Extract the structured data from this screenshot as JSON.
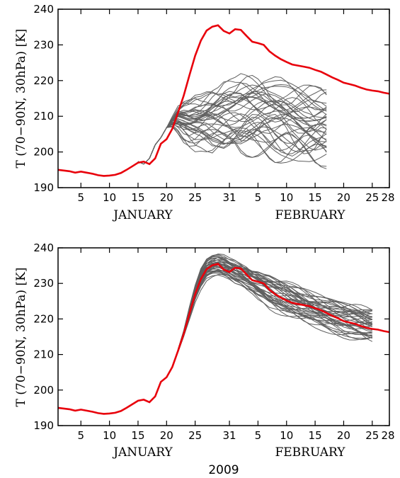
{
  "figure": {
    "year_label": "2009",
    "line_colors": {
      "ensemble": "#606060",
      "observed": "#e8000b"
    }
  },
  "chart_data": [
    {
      "type": "line",
      "title": "",
      "ylabel": "T (70−90N, 30hPa) [K]",
      "xlabel": "",
      "month_labels": [
        "JANUARY",
        "FEBRUARY"
      ],
      "ylim": [
        190,
        240
      ],
      "yticks": [
        190,
        200,
        210,
        220,
        230,
        240
      ],
      "xlim": [
        1,
        59
      ],
      "xticks": [
        {
          "day": 5,
          "label": "5"
        },
        {
          "day": 10,
          "label": "10"
        },
        {
          "day": 15,
          "label": "15"
        },
        {
          "day": 20,
          "label": "20"
        },
        {
          "day": 25,
          "label": "25"
        },
        {
          "day": 31,
          "label": "31"
        },
        {
          "day": 36,
          "label": "5"
        },
        {
          "day": 41,
          "label": "10"
        },
        {
          "day": 46,
          "label": "15"
        },
        {
          "day": 51,
          "label": "20"
        },
        {
          "day": 56,
          "label": "25"
        },
        {
          "day": 59,
          "label": "28"
        }
      ],
      "observed": {
        "x": [
          1,
          2,
          3,
          4,
          5,
          6,
          7,
          8,
          9,
          10,
          11,
          12,
          13,
          14,
          15,
          16,
          17,
          18,
          19,
          20,
          21,
          22,
          23,
          24,
          25,
          26,
          27,
          28,
          29,
          30,
          31,
          32,
          33,
          34,
          35,
          36,
          37,
          38,
          39,
          40,
          41,
          42,
          43,
          44,
          45,
          46,
          47,
          48,
          49,
          50,
          51,
          52,
          53,
          54,
          55,
          56,
          57,
          58,
          59
        ],
        "y": [
          195.0,
          194.8,
          194.6,
          194.2,
          194.5,
          194.2,
          193.9,
          193.5,
          193.3,
          193.4,
          193.6,
          194.1,
          195.0,
          196.0,
          197.0,
          197.3,
          196.6,
          198.2,
          202.3,
          203.6,
          206.5,
          211.0,
          215.8,
          221.5,
          227.0,
          231.2,
          234.0,
          235.1,
          235.5,
          233.9,
          233.2,
          234.4,
          234.2,
          232.5,
          230.9,
          230.5,
          230.0,
          228.2,
          227.0,
          226.0,
          225.2,
          224.5,
          224.2,
          223.9,
          223.6,
          223.0,
          222.5,
          221.7,
          220.9,
          220.2,
          219.4,
          219.0,
          218.6,
          218.0,
          217.5,
          217.2,
          217.0,
          216.6,
          216.3
        ]
      },
      "ensemble": {
        "start_day": 15,
        "end_day": 48,
        "members": 40,
        "shared_start": [
          197.3,
          196.6,
          198.2,
          202.0,
          204.0,
          206.8
        ],
        "spread_mean": [
          197.3,
          196.6,
          198.2,
          202.0,
          204.0,
          206.8,
          208.5,
          209.0,
          208.5,
          208.0,
          208.0,
          208.2,
          208.5,
          208.7,
          209.0,
          209.3,
          209.5,
          209.7,
          209.8,
          210.0,
          210.0,
          209.8,
          209.5,
          209.0,
          208.7,
          208.5,
          208.3,
          208.0,
          207.7,
          207.5,
          207.3,
          207.0,
          207.0,
          206.8
        ],
        "spread_range": [
          0,
          0,
          0,
          0,
          0,
          0,
          1.5,
          4,
          6,
          7,
          8,
          8,
          9,
          10,
          10,
          11,
          11,
          11,
          12,
          12,
          12,
          12,
          12,
          12,
          12,
          12,
          12,
          12,
          12,
          12,
          12,
          12,
          12,
          12
        ]
      }
    },
    {
      "type": "line",
      "title": "",
      "ylabel": "T (70−90N, 30hPa) [K]",
      "xlabel": "2009",
      "month_labels": [
        "JANUARY",
        "FEBRUARY"
      ],
      "ylim": [
        190,
        240
      ],
      "yticks": [
        190,
        200,
        210,
        220,
        230,
        240
      ],
      "xlim": [
        1,
        59
      ],
      "xticks": [
        {
          "day": 5,
          "label": "5"
        },
        {
          "day": 10,
          "label": "10"
        },
        {
          "day": 15,
          "label": "15"
        },
        {
          "day": 20,
          "label": "20"
        },
        {
          "day": 25,
          "label": "25"
        },
        {
          "day": 31,
          "label": "31"
        },
        {
          "day": 36,
          "label": "5"
        },
        {
          "day": 41,
          "label": "10"
        },
        {
          "day": 46,
          "label": "15"
        },
        {
          "day": 51,
          "label": "20"
        },
        {
          "day": 56,
          "label": "25"
        },
        {
          "day": 59,
          "label": "28"
        }
      ],
      "observed": {
        "x": [
          1,
          2,
          3,
          4,
          5,
          6,
          7,
          8,
          9,
          10,
          11,
          12,
          13,
          14,
          15,
          16,
          17,
          18,
          19,
          20,
          21,
          22,
          23,
          24,
          25,
          26,
          27,
          28,
          29,
          30,
          31,
          32,
          33,
          34,
          35,
          36,
          37,
          38,
          39,
          40,
          41,
          42,
          43,
          44,
          45,
          46,
          47,
          48,
          49,
          50,
          51,
          52,
          53,
          54,
          55,
          56,
          57,
          58,
          59
        ],
        "y": [
          195.0,
          194.8,
          194.6,
          194.2,
          194.5,
          194.2,
          193.9,
          193.5,
          193.3,
          193.4,
          193.6,
          194.1,
          195.0,
          196.0,
          197.0,
          197.3,
          196.6,
          198.2,
          202.3,
          203.6,
          206.5,
          211.0,
          215.8,
          221.5,
          227.0,
          231.2,
          234.0,
          235.1,
          235.5,
          233.9,
          233.2,
          234.4,
          234.2,
          232.5,
          230.9,
          230.5,
          230.0,
          228.2,
          227.0,
          226.0,
          225.2,
          224.5,
          224.2,
          223.9,
          223.6,
          223.0,
          222.5,
          221.7,
          220.9,
          220.2,
          219.4,
          219.0,
          218.6,
          218.0,
          217.5,
          217.2,
          217.0,
          216.6,
          216.3
        ]
      },
      "ensemble": {
        "start_day": 22,
        "end_day": 56,
        "members": 40,
        "mean": [
          211.0,
          215.8,
          221.5,
          227.0,
          231.2,
          233.8,
          234.8,
          235.2,
          234.8,
          234.0,
          233.2,
          232.5,
          231.5,
          230.5,
          229.5,
          228.5,
          227.5,
          226.7,
          226.0,
          225.4,
          224.8,
          224.2,
          223.6,
          223.0,
          222.4,
          221.8,
          221.2,
          220.6,
          220.1,
          219.6,
          219.2,
          218.8,
          218.4,
          218.0,
          217.8
        ],
        "spread_range": [
          0.5,
          1,
          2,
          2.5,
          3,
          3,
          3,
          3,
          3,
          3,
          3.5,
          3.5,
          4,
          4,
          4.5,
          4.5,
          5,
          5,
          5,
          5,
          5,
          5,
          5,
          5,
          5,
          5,
          5,
          5,
          5,
          5,
          5,
          5,
          5,
          5,
          5
        ]
      }
    }
  ]
}
